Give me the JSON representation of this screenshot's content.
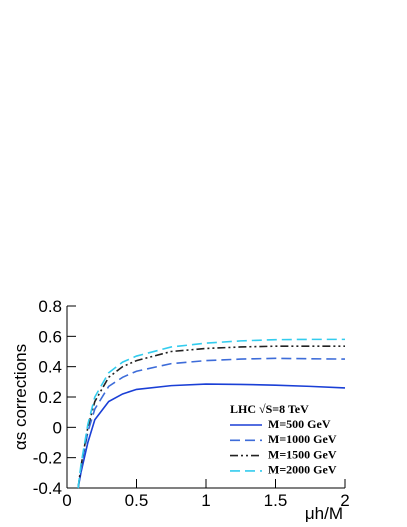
{
  "chart_data": {
    "type": "line",
    "xlabel": "μh/M",
    "ylabel": "αs corrections",
    "legend_title": "LHC √S=8 TeV",
    "x": [
      0.08,
      0.1,
      0.15,
      0.2,
      0.3,
      0.4,
      0.5,
      0.75,
      1,
      1.25,
      1.5,
      1.75,
      2
    ],
    "series": [
      {
        "name": "M=500 GeV",
        "color": "#1a3fd6",
        "style": "solid",
        "values": [
          -0.4,
          -0.3,
          -0.1,
          0.05,
          0.17,
          0.22,
          0.25,
          0.275,
          0.285,
          0.283,
          0.278,
          0.27,
          0.26
        ]
      },
      {
        "name": "M=1000 GeV",
        "color": "#3d6cd9",
        "style": "dashed",
        "values": [
          -0.4,
          -0.28,
          -0.03,
          0.12,
          0.27,
          0.33,
          0.37,
          0.42,
          0.44,
          0.45,
          0.455,
          0.452,
          0.45
        ]
      },
      {
        "name": "M=1500 GeV",
        "color": "#222222",
        "style": "dashdotdot",
        "values": [
          -0.4,
          -0.26,
          0.0,
          0.17,
          0.33,
          0.4,
          0.44,
          0.5,
          0.52,
          0.53,
          0.535,
          0.535,
          0.535
        ]
      },
      {
        "name": "M=2000 GeV",
        "color": "#33ccee",
        "style": "dashed",
        "values": [
          -0.4,
          -0.25,
          0.02,
          0.2,
          0.36,
          0.43,
          0.47,
          0.53,
          0.555,
          0.57,
          0.578,
          0.58,
          0.58
        ]
      }
    ],
    "xlim": [
      0,
      2
    ],
    "xticks": [
      0,
      0.5,
      1,
      1.5,
      2
    ],
    "ylim": [
      -0.4,
      0.8
    ],
    "yticks": [
      -0.4,
      -0.2,
      0,
      0.2,
      0.4,
      0.6,
      0.8
    ],
    "legend": "lower right"
  }
}
